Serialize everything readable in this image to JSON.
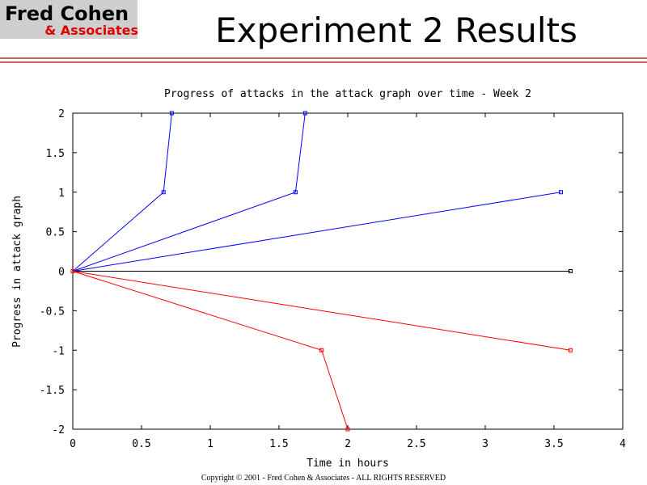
{
  "slide": {
    "logo_name": "Fred Cohen",
    "logo_sub": "& Associates",
    "heading": "Experiment 2 Results",
    "footer": "Copyright © 2001 - Fred Cohen & Associates - ALL RIGHTS RESERVED"
  },
  "chart_data": {
    "type": "line",
    "title": "Progress of attacks in the attack graph over time - Week 2",
    "x_label": "Time in hours",
    "y_label": "Progress in attack graph",
    "xlim": [
      0,
      4
    ],
    "xticks": [
      0,
      0.5,
      1,
      1.5,
      2,
      2.5,
      3,
      3.5,
      4
    ],
    "ylim": [
      -2,
      2
    ],
    "yticks": [
      -2,
      -1.5,
      -1,
      -0.5,
      0,
      0.5,
      1,
      1.5,
      2
    ],
    "grid": false,
    "series": [
      {
        "color": "#0000ff",
        "x": [
          0,
          0.66,
          0.72
        ],
        "values": [
          0,
          1,
          2
        ]
      },
      {
        "color": "#0000ff",
        "x": [
          0,
          1.62,
          1.69
        ],
        "values": [
          0,
          1,
          2
        ]
      },
      {
        "color": "#0000ff",
        "x": [
          0,
          3.55
        ],
        "values": [
          0,
          1
        ]
      },
      {
        "color": "#000000",
        "x": [
          0,
          3.62
        ],
        "values": [
          0,
          0
        ]
      },
      {
        "color": "#ff0000",
        "x": [
          0,
          3.62
        ],
        "values": [
          0,
          -1
        ]
      },
      {
        "color": "#ff0000",
        "x": [
          0,
          1.81,
          2
        ],
        "values": [
          0,
          -1,
          -2
        ]
      }
    ]
  }
}
